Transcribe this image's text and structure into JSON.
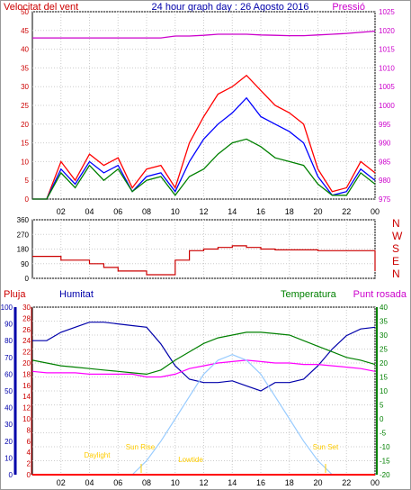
{
  "header": {
    "left_label": "Velocitat del vent",
    "title": "24 hour graph day : 26 Agosto 2016",
    "right_label": "Pressió"
  },
  "direction": {
    "labels": [
      "N",
      "W",
      "S",
      "E",
      "N"
    ],
    "ticks": [
      "360",
      "270",
      "180",
      "90",
      "0"
    ]
  },
  "bottom_header": {
    "rain": "Pluja",
    "humidity": "Humitat",
    "temperature": "Temperatura",
    "dewpoint": "Punt rosada"
  },
  "annotations": {
    "daylight": "Daylight",
    "sunrise": "Sun Rise",
    "sunset": "Sun Set",
    "lowtide": "Lowtide"
  },
  "hours": [
    "02",
    "04",
    "06",
    "08",
    "10",
    "12",
    "14",
    "16",
    "18",
    "20",
    "22",
    "00"
  ],
  "chart_data": [
    {
      "type": "line",
      "name": "wind-pressure",
      "title": "24 hour graph day : 26 Agosto 2016",
      "left_axis": {
        "label": "Velocitat del vent",
        "range": [
          0,
          50
        ],
        "ticks": [
          0,
          5,
          10,
          15,
          20,
          25,
          30,
          35,
          40,
          45,
          50
        ],
        "color": "#cc0000"
      },
      "right_axis": {
        "label": "Pressió",
        "range": [
          975,
          1025
        ],
        "ticks": [
          975,
          980,
          985,
          990,
          995,
          1000,
          1005,
          1010,
          1015,
          1020,
          1025
        ],
        "color": "#cc00cc"
      },
      "x_hours": [
        0,
        1,
        2,
        3,
        4,
        5,
        6,
        7,
        8,
        9,
        10,
        11,
        12,
        13,
        14,
        15,
        16,
        17,
        18,
        19,
        20,
        21,
        22,
        23,
        24
      ],
      "series": [
        {
          "name": "gust",
          "color": "#ff0000",
          "values": [
            0,
            0,
            10,
            5,
            12,
            9,
            11,
            3,
            8,
            9,
            3,
            15,
            22,
            28,
            30,
            33,
            29,
            25,
            23,
            20,
            8,
            2,
            3,
            10,
            7
          ]
        },
        {
          "name": "average",
          "color": "#0000ff",
          "values": [
            0,
            0,
            8,
            4,
            10,
            7,
            9,
            2,
            6,
            7,
            2,
            10,
            16,
            20,
            23,
            27,
            22,
            20,
            18,
            15,
            6,
            1,
            2,
            8,
            5
          ]
        },
        {
          "name": "speed",
          "color": "#008000",
          "values": [
            0,
            0,
            7,
            3,
            9,
            5,
            8,
            2,
            5,
            6,
            1,
            6,
            8,
            12,
            15,
            16,
            14,
            11,
            10,
            9,
            4,
            1,
            1,
            7,
            4
          ]
        },
        {
          "name": "pressure",
          "color": "#cc00cc",
          "values": [
            1018,
            1018,
            1018,
            1018,
            1018,
            1018,
            1018,
            1018,
            1018,
            1018,
            1018.5,
            1018.5,
            1018.7,
            1019,
            1019,
            1019,
            1018.8,
            1018.7,
            1018.6,
            1018.6,
            1018.8,
            1019,
            1019.2,
            1019.5,
            1019.8
          ]
        }
      ]
    },
    {
      "type": "line",
      "name": "wind-direction",
      "left_axis": {
        "range": [
          0,
          360
        ],
        "ticks": [
          0,
          90,
          180,
          270,
          360
        ]
      },
      "x_hours": [
        0,
        1,
        2,
        3,
        4,
        5,
        6,
        7,
        8,
        9,
        10,
        11,
        12,
        13,
        14,
        15,
        16,
        17,
        18,
        19,
        20,
        21,
        22,
        23,
        24
      ],
      "series": [
        {
          "name": "direction",
          "color": "#cc0000",
          "values": [
            135,
            135,
            112,
            112,
            90,
            67,
            45,
            45,
            22,
            22,
            112,
            170,
            180,
            190,
            200,
            190,
            180,
            175,
            175,
            175,
            170,
            170,
            170,
            170,
            45
          ]
        }
      ]
    },
    {
      "type": "line",
      "name": "humidity-temperature",
      "rain_axis": {
        "label": "Pluja",
        "range": [
          0,
          30
        ],
        "ticks": [
          0,
          2,
          4,
          6,
          8,
          10,
          12,
          14,
          16,
          18,
          20,
          22,
          24,
          26,
          28,
          30
        ],
        "color": "#cc0000"
      },
      "humidity_axis": {
        "label": "Humitat",
        "range": [
          0,
          100
        ],
        "ticks": [
          0,
          10,
          20,
          30,
          40,
          50,
          60,
          70,
          80,
          90,
          100
        ],
        "color": "#0000aa"
      },
      "temperature_axis": {
        "label": "Temperatura",
        "range": [
          -20,
          40
        ],
        "ticks": [
          -20,
          -15,
          -10,
          -5,
          0,
          5,
          10,
          15,
          20,
          25,
          30,
          35,
          40
        ],
        "color": "#008000"
      },
      "x_hours": [
        0,
        1,
        2,
        3,
        4,
        5,
        6,
        7,
        8,
        9,
        10,
        11,
        12,
        13,
        14,
        15,
        16,
        17,
        18,
        19,
        20,
        21,
        22,
        23,
        24
      ],
      "series": [
        {
          "name": "humidity",
          "color": "#0000aa",
          "values": [
            80,
            80,
            85,
            88,
            91,
            91,
            90,
            89,
            88,
            78,
            65,
            57,
            55,
            55,
            56,
            53,
            50,
            55,
            55,
            57,
            65,
            75,
            83,
            87,
            88
          ]
        },
        {
          "name": "temperature",
          "color": "#008000",
          "values": [
            21,
            20,
            19,
            18.5,
            18,
            17.5,
            17,
            16.5,
            16,
            17.5,
            21,
            24,
            27,
            29,
            30,
            31,
            31,
            30.5,
            30,
            28,
            26,
            24,
            22,
            21,
            19.5
          ]
        },
        {
          "name": "dewpoint",
          "color": "#ff00ff",
          "values": [
            17,
            16.5,
            16.5,
            16.5,
            16,
            16,
            16,
            16,
            15,
            15,
            16,
            18,
            19,
            20,
            20.5,
            21,
            20.5,
            20,
            20,
            19.5,
            19.5,
            19,
            18.5,
            18,
            17
          ]
        },
        {
          "name": "solar",
          "color": "#99ccff",
          "values": [
            null,
            null,
            null,
            null,
            null,
            null,
            null,
            -20,
            -15,
            -8,
            0,
            8,
            16,
            21,
            23,
            21,
            16,
            8,
            0,
            -8,
            -15,
            -20,
            null,
            null,
            null
          ]
        },
        {
          "name": "rain",
          "color": "#ff0000",
          "values": [
            0,
            0,
            0,
            0,
            0,
            0,
            0,
            0,
            0,
            0,
            0,
            0,
            0,
            0,
            0,
            0,
            0,
            0,
            0,
            0,
            0,
            0,
            0,
            0,
            0
          ]
        }
      ]
    }
  ]
}
